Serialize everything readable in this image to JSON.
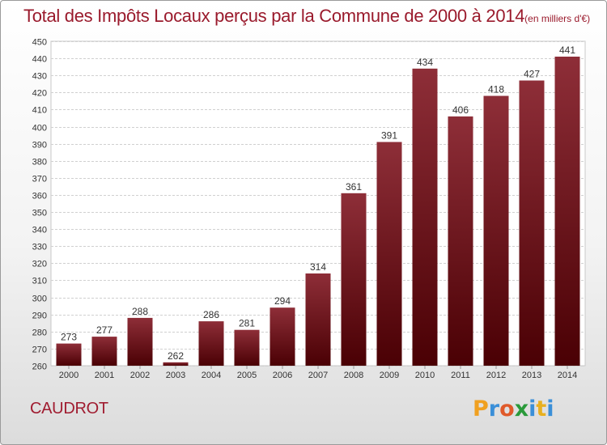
{
  "title": "Total des Impôts Locaux perçus par la Commune de 2000 à 2014",
  "unit_note": "(en milliers d'€)",
  "commune": "CAUDROT",
  "logo": {
    "letters": [
      "P",
      "r",
      "o",
      "x",
      "i",
      "t",
      "i"
    ],
    "colors": [
      "#f0a020",
      "#3a8fd8",
      "#e05a2a",
      "#2a9a3a",
      "#3a8fd8",
      "#e8b020",
      "#3a8fd8"
    ]
  },
  "colors": {
    "bar_top": "#8e2e38",
    "bar_bottom": "#4a0004",
    "title": "#9a1a2c"
  },
  "chart_data": {
    "type": "bar",
    "title": "Total des Impôts Locaux perçus par la Commune de 2000 à 2014",
    "categories": [
      "2000",
      "2001",
      "2002",
      "2003",
      "2004",
      "2005",
      "2006",
      "2007",
      "2008",
      "2009",
      "2010",
      "2011",
      "2012",
      "2013",
      "2014"
    ],
    "values": [
      273,
      277,
      288,
      262,
      286,
      281,
      294,
      314,
      361,
      391,
      434,
      406,
      418,
      427,
      441
    ],
    "ylim": [
      260,
      450
    ],
    "yticks": [
      260,
      270,
      280,
      290,
      300,
      310,
      320,
      330,
      340,
      350,
      360,
      370,
      380,
      390,
      400,
      410,
      420,
      430,
      440,
      450
    ],
    "grid": true,
    "data_labels": true,
    "xlabel": "",
    "ylabel": ""
  }
}
